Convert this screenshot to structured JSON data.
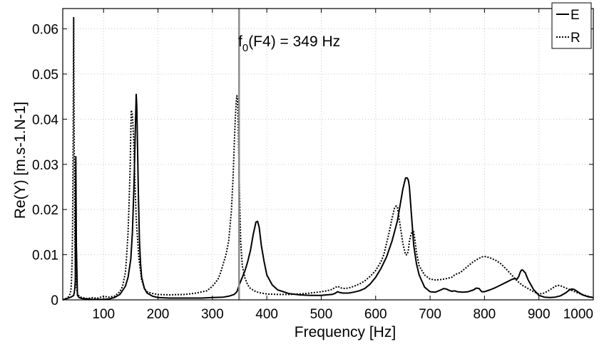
{
  "chart_data": {
    "type": "line",
    "xlabel": "Frequency [Hz]",
    "ylabel": "Re(Y) [m.s-1.N-1]",
    "xlim": [
      25,
      1000
    ],
    "ylim": [
      0,
      0.0645
    ],
    "xticks": [
      100,
      200,
      300,
      400,
      500,
      600,
      700,
      800,
      900,
      1000
    ],
    "yticks": [
      0,
      0.01,
      0.02,
      0.03,
      0.04,
      0.05,
      0.06
    ],
    "ytick_labels": [
      "0",
      "0.01",
      "0.02",
      "0.03",
      "0.04",
      "0.05",
      "0.06"
    ],
    "grid": true,
    "legend_position": "top-right",
    "annotation": {
      "x": 349,
      "label_main": "f",
      "label_sub": "0",
      "label_rest": "(F4) = 349 Hz"
    },
    "series": [
      {
        "name": "E",
        "style": "solid",
        "x": [
          25,
          30,
          35,
          40,
          43,
          45,
          46,
          47,
          48,
          49,
          50,
          52,
          55,
          60,
          70,
          80,
          90,
          100,
          110,
          120,
          130,
          140,
          145,
          150,
          153,
          156,
          158,
          160,
          161,
          162,
          164,
          166,
          168,
          170,
          175,
          180,
          190,
          200,
          220,
          250,
          280,
          300,
          320,
          330,
          340,
          345,
          350,
          355,
          360,
          365,
          370,
          375,
          380,
          383,
          386,
          390,
          395,
          400,
          410,
          420,
          440,
          460,
          480,
          500,
          510,
          520,
          525,
          530,
          535,
          540,
          550,
          560,
          570,
          580,
          590,
          600,
          610,
          620,
          630,
          640,
          645,
          650,
          655,
          658,
          660,
          662,
          665,
          670,
          675,
          680,
          690,
          700,
          710,
          720,
          725,
          730,
          735,
          740,
          745,
          750,
          760,
          770,
          780,
          785,
          790,
          795,
          800,
          810,
          820,
          830,
          840,
          850,
          855,
          860,
          863,
          866,
          868,
          870,
          875,
          880,
          890,
          900,
          910,
          920,
          930,
          940,
          950,
          955,
          960,
          965,
          970,
          980,
          990,
          1000
        ],
        "values": [
          0,
          0.0002,
          0.0004,
          0.0006,
          0.0008,
          0.001,
          0.0015,
          0.0023,
          0.0042,
          0.0317,
          0.012,
          0.001,
          0.0005,
          0.0003,
          0.0002,
          0.0001,
          0.0001,
          0.0001,
          0.0002,
          0.0005,
          0.0012,
          0.003,
          0.005,
          0.009,
          0.015,
          0.026,
          0.036,
          0.0455,
          0.043,
          0.037,
          0.023,
          0.013,
          0.008,
          0.005,
          0.0025,
          0.0015,
          0.0008,
          0.0005,
          0.0004,
          0.0004,
          0.0004,
          0.0005,
          0.0006,
          0.0008,
          0.0012,
          0.0018,
          0.0035,
          0.005,
          0.0065,
          0.0085,
          0.011,
          0.0145,
          0.0172,
          0.0174,
          0.016,
          0.012,
          0.0085,
          0.0055,
          0.0033,
          0.0022,
          0.0014,
          0.0011,
          0.001,
          0.001,
          0.0011,
          0.0012,
          0.0014,
          0.0018,
          0.0016,
          0.0015,
          0.0015,
          0.0017,
          0.002,
          0.0025,
          0.0035,
          0.005,
          0.007,
          0.0095,
          0.013,
          0.0175,
          0.021,
          0.0245,
          0.027,
          0.027,
          0.0265,
          0.025,
          0.02,
          0.012,
          0.008,
          0.0055,
          0.0028,
          0.0018,
          0.0017,
          0.0022,
          0.0025,
          0.0024,
          0.0021,
          0.0019,
          0.002,
          0.0018,
          0.0017,
          0.0018,
          0.0022,
          0.0026,
          0.0025,
          0.0018,
          0.0018,
          0.0022,
          0.0027,
          0.0033,
          0.0039,
          0.0045,
          0.0047,
          0.0046,
          0.0052,
          0.0062,
          0.0066,
          0.0066,
          0.006,
          0.0045,
          0.0023,
          0.001,
          0.0006,
          0.0005,
          0.0006,
          0.0009,
          0.0016,
          0.0021,
          0.0024,
          0.0023,
          0.0019,
          0.0011,
          0.0007,
          0.0005
        ]
      },
      {
        "name": "R",
        "style": "dotted",
        "x": [
          25,
          30,
          35,
          38,
          40,
          41,
          42,
          43,
          44,
          45,
          46,
          47,
          48,
          50,
          52,
          55,
          60,
          65,
          70,
          75,
          80,
          85,
          90,
          95,
          100,
          105,
          110,
          120,
          130,
          135,
          140,
          142,
          145,
          147,
          149,
          150,
          151,
          153,
          155,
          158,
          160,
          165,
          170,
          175,
          180,
          190,
          200,
          220,
          250,
          270,
          290,
          300,
          310,
          315,
          320,
          325,
          330,
          335,
          338,
          340,
          342,
          344,
          345,
          346,
          347,
          348,
          350,
          352,
          355,
          360,
          365,
          370,
          380,
          390,
          400,
          420,
          440,
          460,
          480,
          500,
          510,
          520,
          525,
          530,
          535,
          540,
          550,
          560,
          570,
          580,
          590,
          600,
          610,
          615,
          620,
          625,
          630,
          635,
          638,
          640,
          642,
          645,
          650,
          655,
          658,
          660,
          662,
          665,
          668,
          670,
          672,
          675,
          680,
          690,
          700,
          710,
          720,
          730,
          740,
          745,
          750,
          755,
          760,
          770,
          780,
          790,
          795,
          800,
          805,
          810,
          820,
          830,
          840,
          850,
          860,
          870,
          880,
          890,
          900,
          910,
          920,
          930,
          935,
          940,
          950,
          960,
          970,
          980,
          990,
          1000
        ],
        "values": [
          0,
          0.0002,
          0.0006,
          0.0012,
          0.002,
          0.004,
          0.008,
          0.015,
          0.035,
          0.0625,
          0.035,
          0.016,
          0.007,
          0.003,
          0.0015,
          0.0008,
          0.0005,
          0.0004,
          0.0003,
          0.0004,
          0.0005,
          0.0004,
          0.0004,
          0.0006,
          0.0008,
          0.0007,
          0.0006,
          0.0008,
          0.0018,
          0.003,
          0.006,
          0.009,
          0.015,
          0.022,
          0.03,
          0.037,
          0.042,
          0.041,
          0.036,
          0.025,
          0.018,
          0.009,
          0.0045,
          0.0025,
          0.0018,
          0.0014,
          0.0012,
          0.0011,
          0.0012,
          0.0015,
          0.002,
          0.003,
          0.0045,
          0.006,
          0.008,
          0.01,
          0.013,
          0.02,
          0.027,
          0.034,
          0.04,
          0.0442,
          0.0452,
          0.0445,
          0.042,
          0.035,
          0.0225,
          0.013,
          0.0075,
          0.0048,
          0.0033,
          0.0025,
          0.0018,
          0.0015,
          0.0013,
          0.0012,
          0.0012,
          0.0013,
          0.0015,
          0.0018,
          0.002,
          0.0023,
          0.0027,
          0.003,
          0.0027,
          0.0025,
          0.0026,
          0.003,
          0.0035,
          0.0042,
          0.0052,
          0.0065,
          0.0085,
          0.01,
          0.0125,
          0.015,
          0.018,
          0.0205,
          0.0208,
          0.0205,
          0.019,
          0.0165,
          0.0125,
          0.01,
          0.01,
          0.011,
          0.013,
          0.0145,
          0.0155,
          0.015,
          0.0135,
          0.0105,
          0.0075,
          0.0055,
          0.0046,
          0.0044,
          0.0045,
          0.0047,
          0.005,
          0.0055,
          0.0058,
          0.006,
          0.0065,
          0.0075,
          0.0085,
          0.0092,
          0.0095,
          0.0096,
          0.0095,
          0.0093,
          0.0088,
          0.008,
          0.0068,
          0.0055,
          0.0042,
          0.0032,
          0.0025,
          0.0018,
          0.0013,
          0.0015,
          0.0022,
          0.003,
          0.0032,
          0.0031,
          0.0026,
          0.0021,
          0.0016,
          0.0012,
          0.0008,
          0.0005
        ]
      }
    ]
  }
}
